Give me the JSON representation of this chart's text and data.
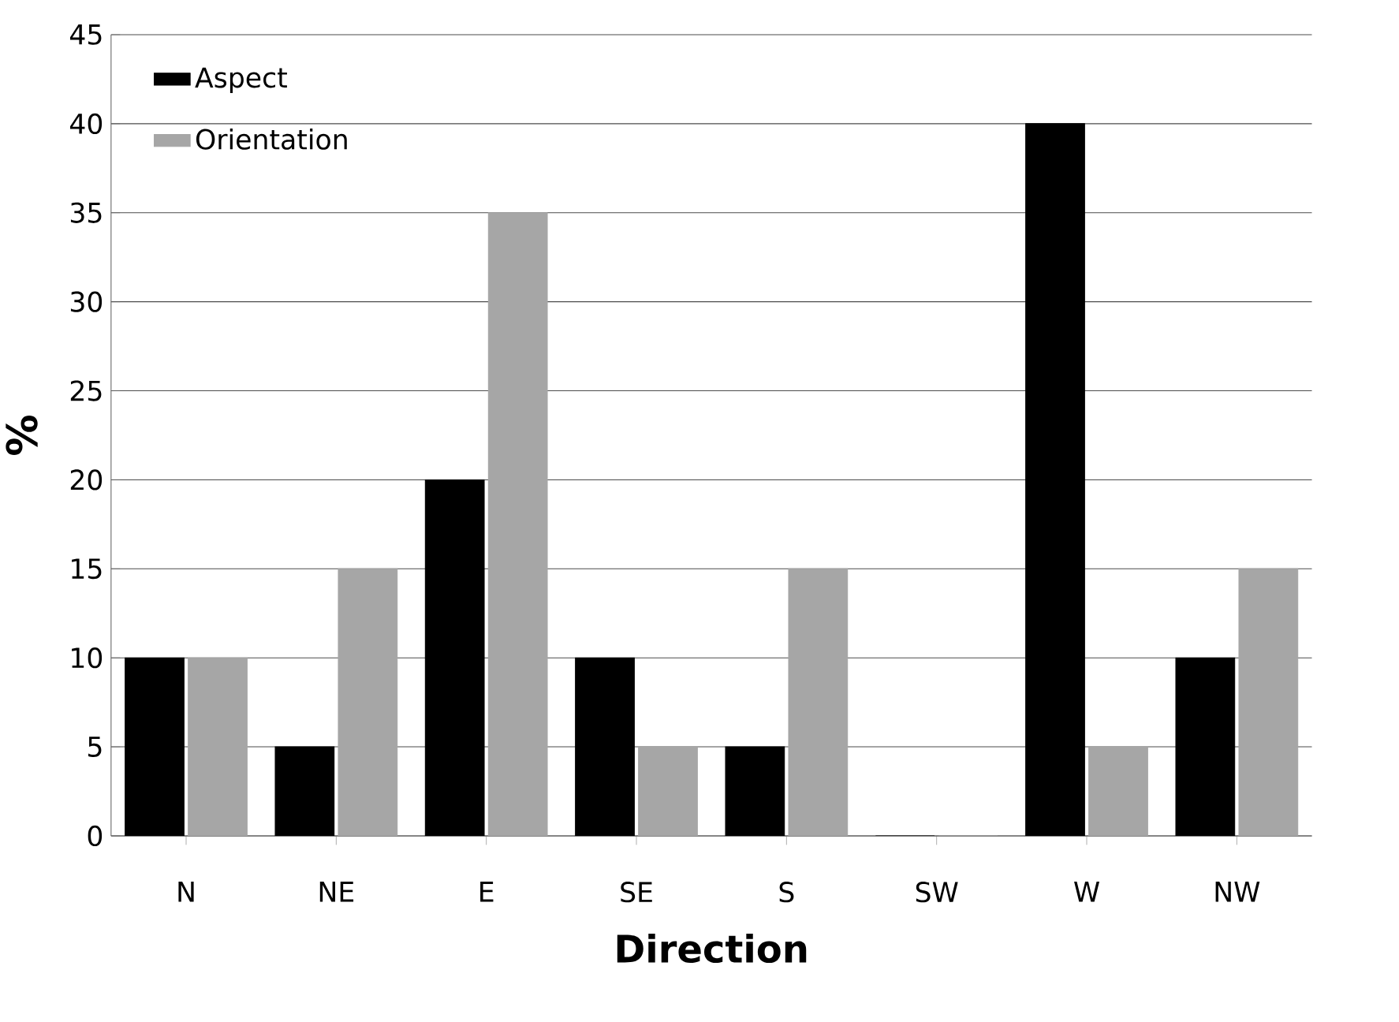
{
  "chart_data": {
    "type": "bar",
    "xlabel": "Direction",
    "ylabel": "%",
    "categories": [
      "N",
      "NE",
      "E",
      "SE",
      "S",
      "SW",
      "W",
      "NW"
    ],
    "series": [
      {
        "name": "Aspect",
        "color": "#000000",
        "values": [
          10,
          5,
          20,
          10,
          5,
          0,
          40,
          10
        ]
      },
      {
        "name": "Orientation",
        "color": "#a6a6a6",
        "values": [
          10,
          15,
          35,
          5,
          15,
          0,
          5,
          15
        ]
      }
    ],
    "ylim": [
      0,
      45
    ],
    "yticks": [
      0,
      5,
      10,
      15,
      20,
      25,
      30,
      35,
      40,
      45
    ],
    "grid": "y",
    "legend": "top left"
  }
}
